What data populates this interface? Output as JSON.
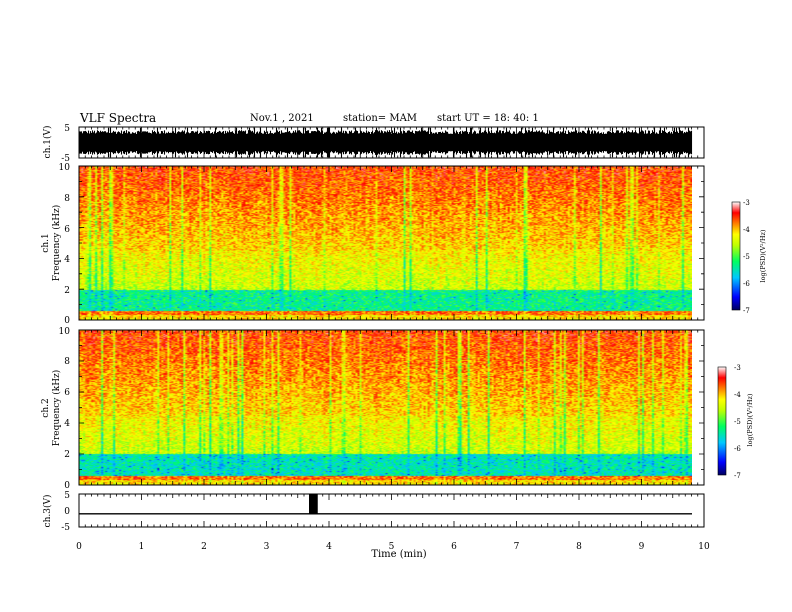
{
  "header": {
    "title": "VLF Spectra",
    "date": "Nov.1 , 2021",
    "station": "station= MAM",
    "start": "start UT = 18: 40: 1"
  },
  "chart_data": [
    {
      "type": "line",
      "panel": "ch1-waveform",
      "ylabel": "ch.1(V)",
      "ylim": [
        -5,
        5
      ],
      "yticks": [
        "5",
        "-5"
      ],
      "xlim": [
        0,
        10
      ]
    },
    {
      "type": "heatmap",
      "panel": "ch1-spectrogram",
      "ylabel": "ch.1 Frequency (kHz)",
      "ylabel_top": "ch.1",
      "ylabel_bottom": "Frequency (kHz)",
      "ylim": [
        0,
        10
      ],
      "yticks": [
        "0",
        "2",
        "4",
        "6",
        "8",
        "10"
      ],
      "xlim": [
        0,
        10
      ],
      "colorbar": {
        "label": "log(PSD)(V²/Hz)",
        "range": [
          -7,
          -3
        ],
        "ticks": [
          "-3",
          "-4",
          "-5",
          "-6",
          "-7"
        ]
      }
    },
    {
      "type": "heatmap",
      "panel": "ch2-spectrogram",
      "ylabel": "ch.2 Frequency (kHz)",
      "ylabel_top": "ch.2",
      "ylabel_bottom": "Frequency (kHz)",
      "ylim": [
        0,
        10
      ],
      "yticks": [
        "0",
        "2",
        "4",
        "6",
        "8",
        "10"
      ],
      "xlim": [
        0,
        10
      ],
      "colorbar": {
        "label": "log(PSD)(V²/Hz)",
        "range": [
          -7,
          -3
        ],
        "ticks": [
          "-3",
          "-4",
          "-5",
          "-6",
          "-7"
        ]
      }
    },
    {
      "type": "line",
      "panel": "ch3-waveform",
      "ylabel": "ch.3(V)",
      "ylim": [
        -5,
        5
      ],
      "yticks": [
        "5",
        "0",
        "-5"
      ],
      "baseline": -1,
      "pulse": {
        "x_start": 3.68,
        "x_end": 3.82,
        "y_top": 5
      },
      "xlim": [
        0,
        10
      ],
      "xlabel": "Time (min)",
      "xticks": [
        "0",
        "1",
        "2",
        "3",
        "4",
        "5",
        "6",
        "7",
        "8",
        "9",
        "10"
      ]
    }
  ],
  "colors": {
    "scale": [
      "#000080",
      "#0000ff",
      "#00c8ff",
      "#00ff80",
      "#40ff00",
      "#ffff00",
      "#ff8000",
      "#ff0000",
      "#ffffff"
    ]
  }
}
